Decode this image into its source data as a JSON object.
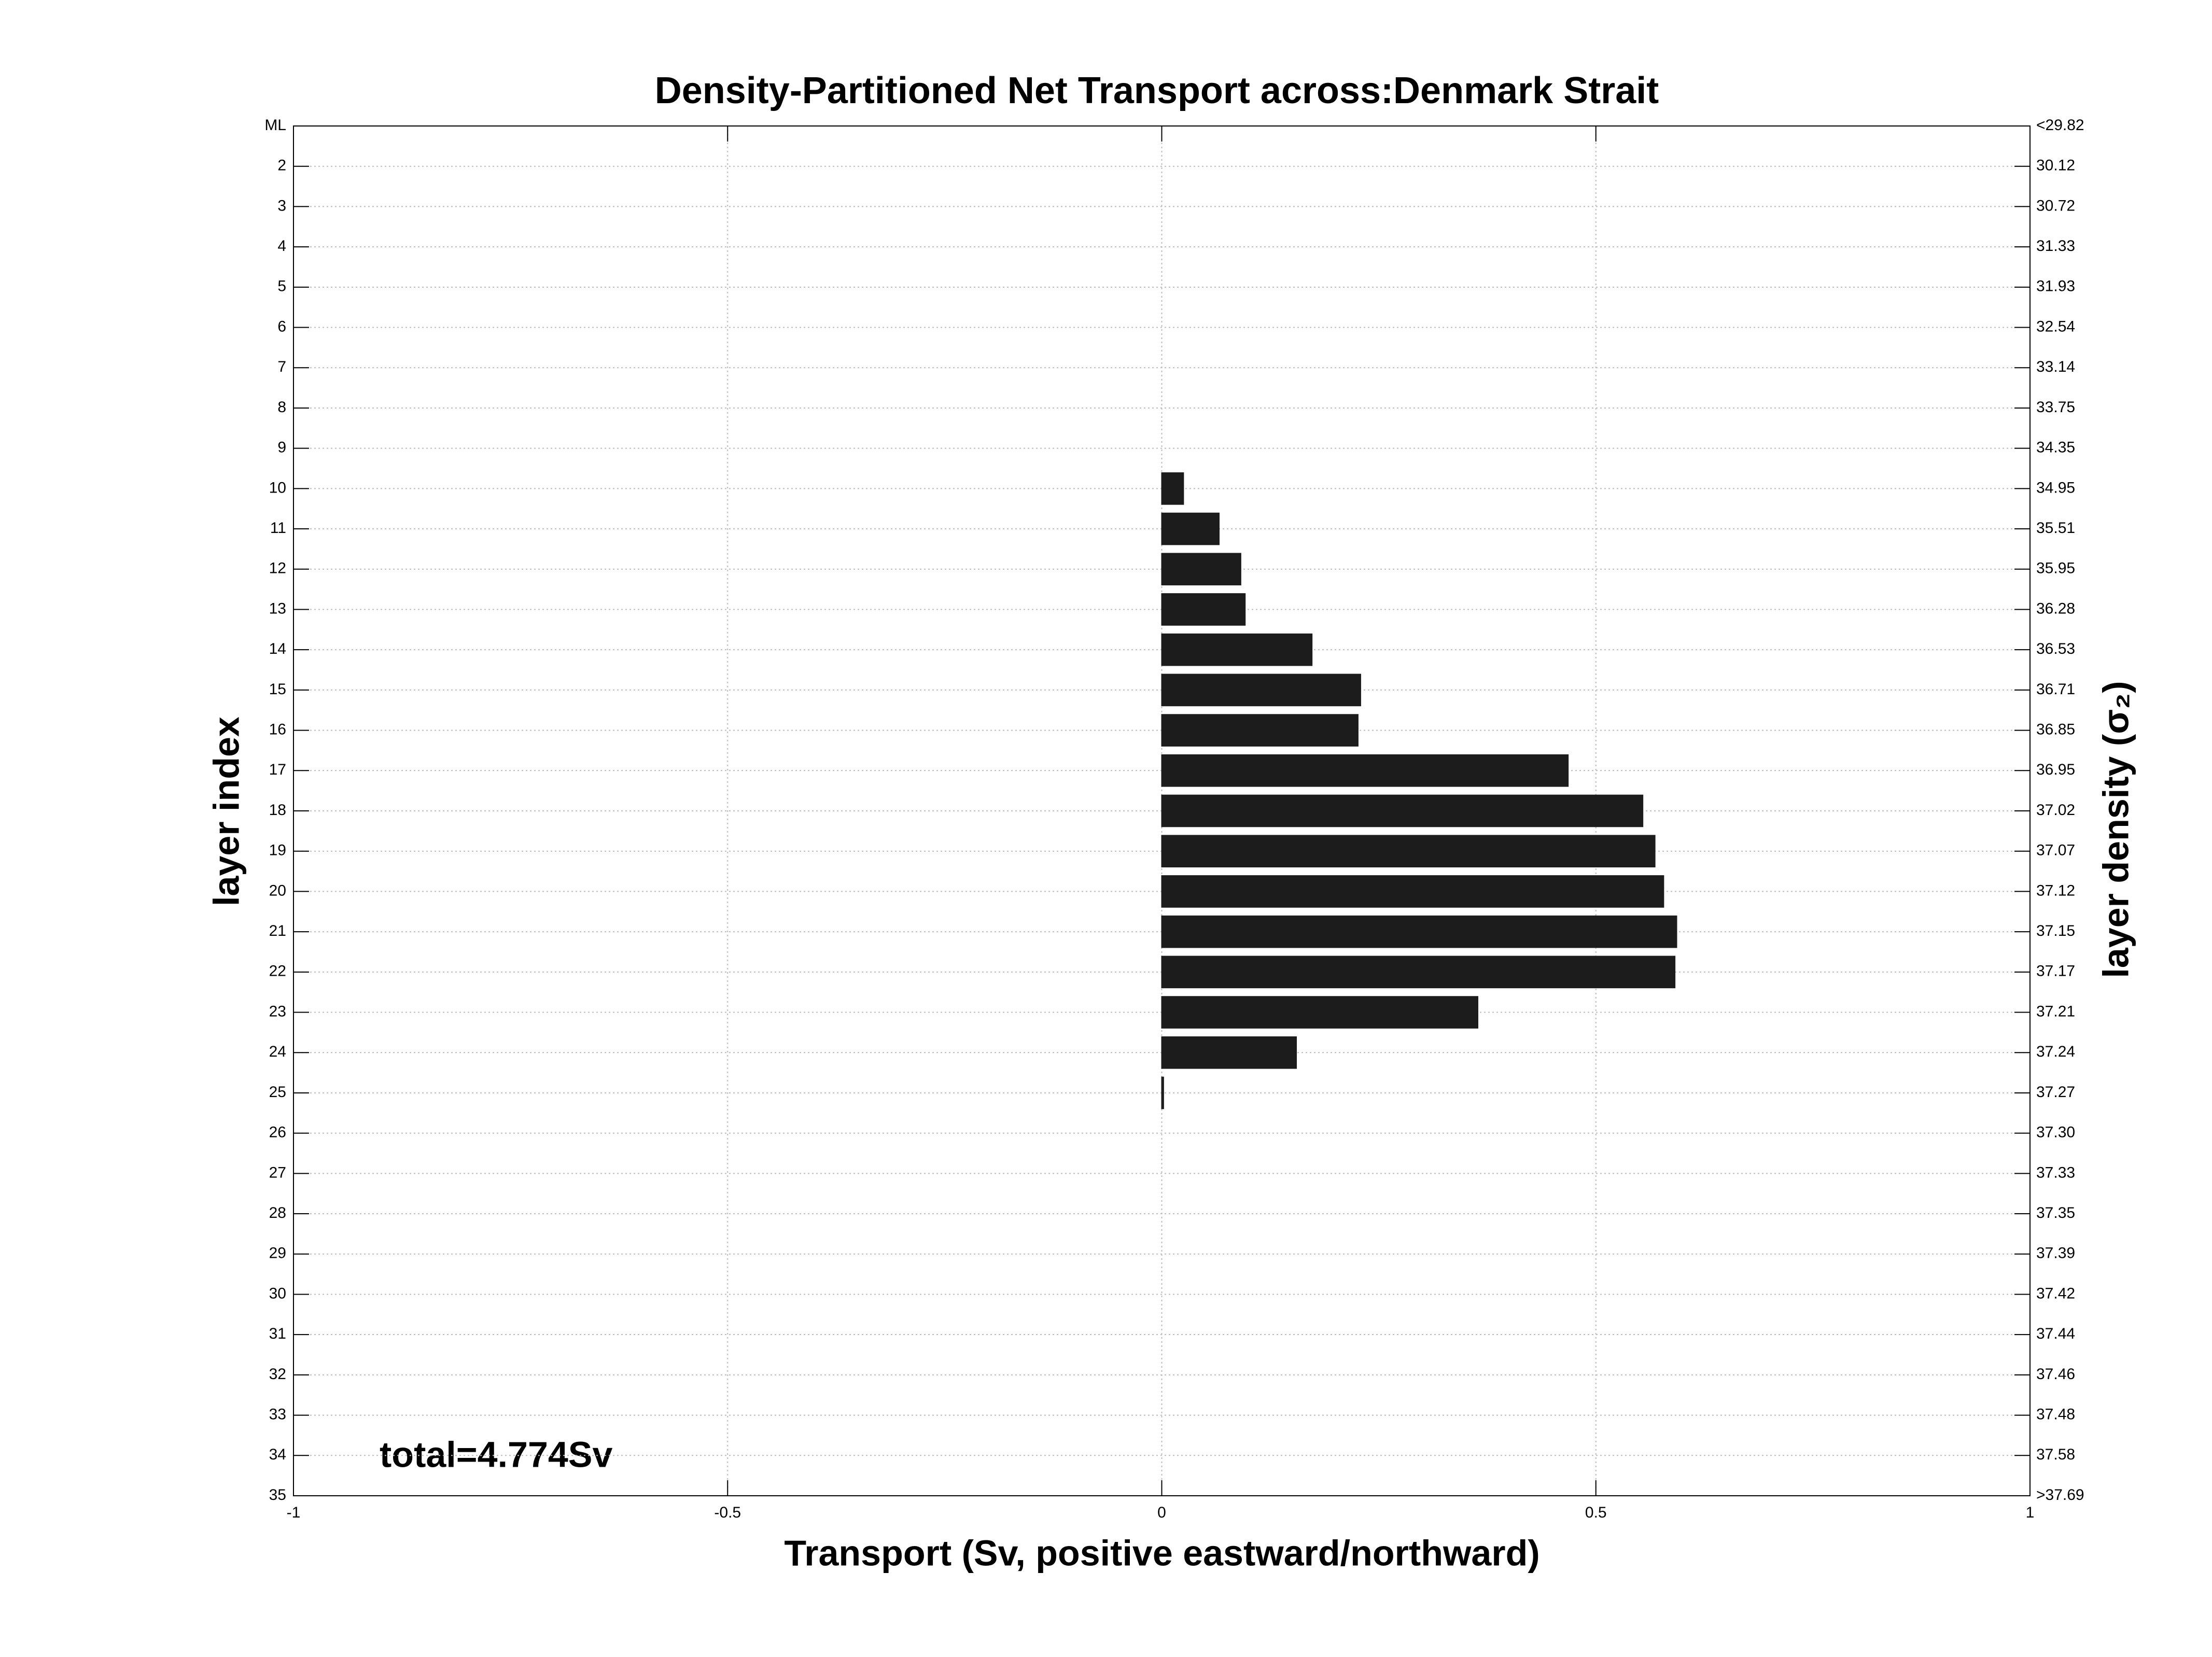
{
  "chart_data": {
    "type": "bar",
    "orientation": "horizontal",
    "title": "Density-Partitioned Net Transport across:Denmark Strait",
    "xlabel": "Transport (Sv, positive eastward/northward)",
    "ylabel": "layer index",
    "y2label": "layer density (σ₂)",
    "annotation": "total=4.774Sv",
    "categories": [
      "ML",
      "2",
      "3",
      "4",
      "5",
      "6",
      "7",
      "8",
      "9",
      "10",
      "11",
      "12",
      "13",
      "14",
      "15",
      "16",
      "17",
      "18",
      "19",
      "20",
      "21",
      "22",
      "23",
      "24",
      "25",
      "26",
      "27",
      "28",
      "29",
      "30",
      "31",
      "32",
      "33",
      "34",
      "35"
    ],
    "y2_labels": [
      "<29.82",
      "30.12",
      "30.72",
      "31.33",
      "31.93",
      "32.54",
      "33.14",
      "33.75",
      "34.35",
      "34.95",
      "35.51",
      "35.95",
      "36.28",
      "36.53",
      "36.71",
      "36.85",
      "36.95",
      "37.02",
      "37.07",
      "37.12",
      "37.15",
      "37.17",
      "37.21",
      "37.24",
      "37.27",
      "37.30",
      "37.33",
      "37.35",
      "37.39",
      "37.42",
      "37.44",
      "37.46",
      "37.48",
      "37.58",
      ">37.69"
    ],
    "values": [
      0,
      0,
      0,
      0,
      0,
      0,
      0,
      0,
      0,
      0.025,
      0.066,
      0.091,
      0.096,
      0.173,
      0.229,
      0.226,
      0.468,
      0.554,
      0.568,
      0.578,
      0.593,
      0.591,
      0.364,
      0.155,
      0.002,
      0,
      0,
      0,
      0,
      0,
      0,
      0,
      0,
      0,
      0
    ],
    "color": "#1c1c1c",
    "xlim": [
      -1,
      1
    ],
    "xticks": [
      -1,
      -0.5,
      0,
      0.5,
      1
    ],
    "grid": true
  }
}
